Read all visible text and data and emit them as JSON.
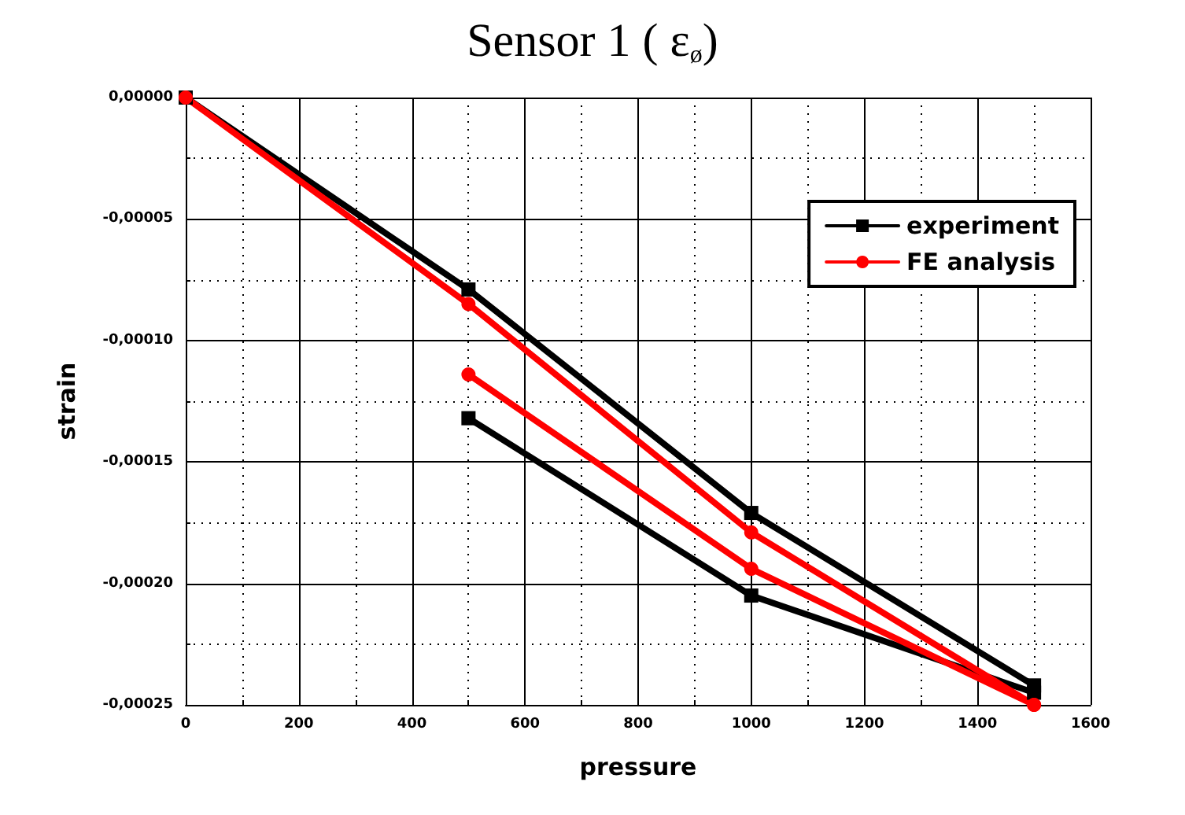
{
  "chart_data": {
    "type": "line",
    "title": "Sensor 1 ( ε$_{ø}$)",
    "xlabel": "pressure",
    "ylabel": "strain",
    "series": [
      {
        "name": "experiment",
        "color": "#000000",
        "marker": "square",
        "x": [
          0,
          500,
          1000,
          1500
        ],
        "values": [
          0,
          -7.9e-05,
          -0.000171,
          -0.000242
        ]
      },
      {
        "color": "#000000",
        "marker": "square",
        "x": [
          500,
          1000,
          1500
        ],
        "values": [
          -0.000132,
          -0.000205,
          -0.000245
        ]
      },
      {
        "name": "FE analysis",
        "color": "#ff0000",
        "marker": "circle",
        "x": [
          0,
          500,
          1000,
          1500
        ],
        "values": [
          0,
          -8.5e-05,
          -0.000179,
          -0.00025
        ]
      },
      {
        "color": "#ff0000",
        "marker": "circle",
        "x": [
          500,
          1000,
          1500
        ],
        "values": [
          -0.000114,
          -0.000194,
          -0.00025
        ]
      }
    ],
    "xlim": [
      0,
      1600
    ],
    "xticks": [
      0,
      200,
      400,
      600,
      800,
      1000,
      1200,
      1400,
      1600
    ],
    "ylim": [
      -0.00025,
      0
    ],
    "yticks": [
      {
        "value": 0,
        "label": "0,00000"
      },
      {
        "value": -5e-05,
        "label": "-0,00005"
      },
      {
        "value": -0.0001,
        "label": "-0,00010"
      },
      {
        "value": -0.00015,
        "label": "-0,00015"
      },
      {
        "value": -0.0002,
        "label": "-0,00020"
      },
      {
        "value": -0.00025,
        "label": "-0,00025"
      }
    ],
    "grid": true,
    "legend": "top right",
    "line_style": "solid"
  }
}
